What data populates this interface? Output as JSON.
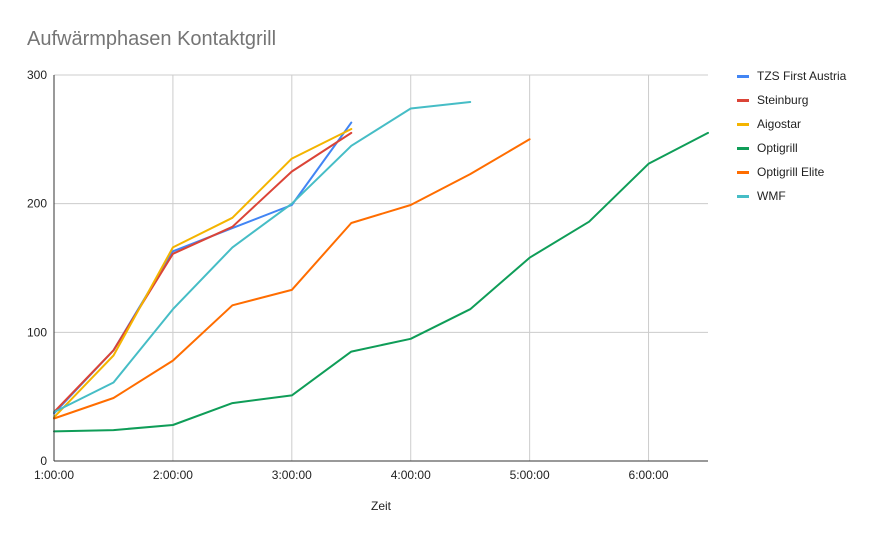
{
  "chart_data": {
    "type": "line",
    "title": "Aufwärmphasen Kontaktgrill",
    "xlabel": "Zeit",
    "ylabel": "",
    "x_ticks": [
      "1:00:00",
      "2:00:00",
      "3:00:00",
      "4:00:00",
      "5:00:00",
      "6:00:00"
    ],
    "y_ticks": [
      "0",
      "100",
      "200",
      "300"
    ],
    "xlim_minutes": [
      60,
      390
    ],
    "ylim": [
      0,
      300
    ],
    "grid": true,
    "legend_position": "right",
    "series": [
      {
        "name": "TZS First Austria",
        "color": "#4285f4",
        "x": [
          "1:00:00",
          "1:30:00",
          "2:00:00",
          "2:30:00",
          "3:00:00",
          "3:30:00"
        ],
        "y": [
          37,
          86,
          163,
          181,
          199,
          263
        ]
      },
      {
        "name": "Steinburg",
        "color": "#db4437",
        "x": [
          "1:00:00",
          "1:30:00",
          "2:00:00",
          "2:30:00",
          "3:00:00",
          "3:30:00"
        ],
        "y": [
          38,
          86,
          161,
          182,
          225,
          255
        ]
      },
      {
        "name": "Aigostar",
        "color": "#f4b400",
        "x": [
          "1:00:00",
          "1:30:00",
          "2:00:00",
          "2:30:00",
          "3:00:00",
          "3:30:00"
        ],
        "y": [
          34,
          82,
          166,
          189,
          235,
          258
        ]
      },
      {
        "name": "Optigrill",
        "color": "#0f9d58",
        "x": [
          "1:00:00",
          "1:30:00",
          "2:00:00",
          "2:30:00",
          "3:00:00",
          "3:30:00",
          "4:00:00",
          "4:30:00",
          "5:00:00",
          "5:30:00",
          "6:00:00",
          "6:30:00"
        ],
        "y": [
          23,
          24,
          28,
          45,
          51,
          85,
          95,
          118,
          158,
          186,
          231,
          255
        ]
      },
      {
        "name": "Optigrill Elite",
        "color": "#ff6d00",
        "x": [
          "1:00:00",
          "1:30:00",
          "2:00:00",
          "2:30:00",
          "3:00:00",
          "3:30:00",
          "4:00:00",
          "4:30:00",
          "5:00:00"
        ],
        "y": [
          33,
          49,
          78,
          121,
          133,
          185,
          199,
          223,
          250
        ]
      },
      {
        "name": "WMF",
        "color": "#46bdc6",
        "x": [
          "1:00:00",
          "1:30:00",
          "2:00:00",
          "2:30:00",
          "3:00:00",
          "3:30:00",
          "4:00:00",
          "4:30:00"
        ],
        "y": [
          38,
          61,
          118,
          166,
          200,
          245,
          274,
          279
        ]
      }
    ]
  }
}
